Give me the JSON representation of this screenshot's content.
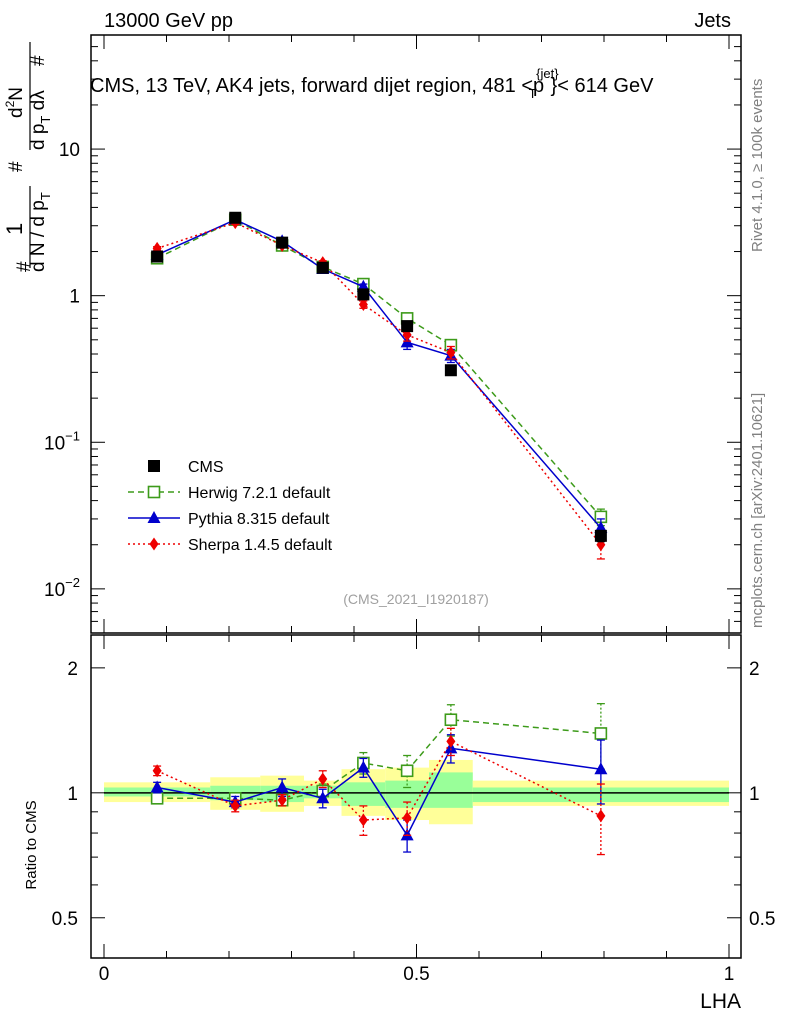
{
  "header": {
    "left": "13000 GeV pp",
    "right": "Jets"
  },
  "side_labels": {
    "rivet": "Rivet 4.1.0, ≥ 100k events",
    "mcplots": "mcplots.cern.ch [arXiv:2401.10621]"
  },
  "chart_data": {
    "type": "line",
    "title_prefix": "CMS, 13 TeV, AK4 jets, forward dijet region, 481 <p",
    "title_sup": "{jet}",
    "title_sub": "T",
    "title_suffix": "}< 614 GeV",
    "analysis_id": "(CMS_2021_I1920187)",
    "xlabel": "LHA",
    "ylabel_main": "# 1 / (d N / d p_T #) # d²N / (d p_T dλ)",
    "ylabel_ratio": "Ratio to CMS",
    "xlim": [
      0,
      1
    ],
    "ylim_main": [
      0.005,
      60
    ],
    "yscale_main": "log",
    "ylim_ratio": [
      0.4,
      2.4
    ],
    "yscale_ratio": "log",
    "x_ticks": [
      {
        "value": 0,
        "label": "0"
      },
      {
        "value": 0.5,
        "label": "0.5"
      },
      {
        "value": 1,
        "label": "1"
      }
    ],
    "y_ticks_main": [
      {
        "value": 0.01,
        "base": "10",
        "exp": "−2"
      },
      {
        "value": 0.1,
        "base": "10",
        "exp": "−1"
      },
      {
        "value": 1,
        "base": "1",
        "exp": ""
      },
      {
        "value": 10,
        "base": "10",
        "exp": ""
      }
    ],
    "y_ticks_ratio": [
      {
        "value": 0.5,
        "label": "0.5"
      },
      {
        "value": 1,
        "label": "1"
      },
      {
        "value": 2,
        "label": "2"
      }
    ],
    "bins": [
      [
        0.0,
        0.17
      ],
      [
        0.17,
        0.25
      ],
      [
        0.25,
        0.32
      ],
      [
        0.32,
        0.38
      ],
      [
        0.38,
        0.45
      ],
      [
        0.45,
        0.52
      ],
      [
        0.52,
        0.59
      ],
      [
        0.59,
        1.0
      ]
    ],
    "band_outer": [
      [
        0.95,
        1.06
      ],
      [
        0.91,
        1.09
      ],
      [
        0.9,
        1.1
      ],
      [
        0.93,
        1.07
      ],
      [
        0.88,
        1.14
      ],
      [
        0.86,
        1.15
      ],
      [
        0.84,
        1.2
      ],
      [
        0.93,
        1.07
      ]
    ],
    "band_inner": [
      [
        0.98,
        1.03
      ],
      [
        0.96,
        1.04
      ],
      [
        0.95,
        1.04
      ],
      [
        0.97,
        1.04
      ],
      [
        0.93,
        1.06
      ],
      [
        0.92,
        1.07
      ],
      [
        0.92,
        1.12
      ],
      [
        0.95,
        1.03
      ]
    ],
    "series": [
      {
        "name": "CMS",
        "key": "cms",
        "color": "#000000",
        "marker": "square-filled",
        "line": "none",
        "x": [
          0.085,
          0.21,
          0.285,
          0.35,
          0.415,
          0.485,
          0.555,
          0.795
        ],
        "values": [
          1.85,
          3.4,
          2.3,
          1.55,
          1.02,
          0.62,
          0.31,
          0.023
        ],
        "errors": [
          0.05,
          0.08,
          0.06,
          0.05,
          0.04,
          0.03,
          0.02,
          0.002
        ],
        "ratio": [
          1,
          1,
          1,
          1,
          1,
          1,
          1,
          1
        ],
        "ratio_errors": [
          0,
          0,
          0,
          0,
          0,
          0,
          0,
          0
        ]
      },
      {
        "name": "Herwig 7.2.1 default",
        "key": "herwig",
        "color": "#3d9b1a",
        "marker": "square-open",
        "line": "dashed",
        "x": [
          0.085,
          0.21,
          0.285,
          0.35,
          0.415,
          0.485,
          0.555,
          0.795
        ],
        "values": [
          1.8,
          3.3,
          2.2,
          1.57,
          1.2,
          0.7,
          0.46,
          0.031
        ],
        "errors": [
          0.05,
          0.08,
          0.06,
          0.05,
          0.05,
          0.04,
          0.03,
          0.004
        ],
        "ratio": [
          0.97,
          0.97,
          0.96,
          1.01,
          1.18,
          1.13,
          1.5,
          1.39
        ],
        "ratio_errors": [
          0.02,
          0.02,
          0.03,
          0.04,
          0.07,
          0.1,
          0.13,
          0.25
        ]
      },
      {
        "name": "Pythia 8.315 default",
        "key": "pythia",
        "color": "#0000cc",
        "marker": "triangle",
        "line": "solid",
        "x": [
          0.085,
          0.21,
          0.285,
          0.35,
          0.415,
          0.485,
          0.555,
          0.795
        ],
        "values": [
          1.9,
          3.3,
          2.35,
          1.52,
          1.15,
          0.48,
          0.39,
          0.026
        ],
        "errors": [
          0.05,
          0.08,
          0.07,
          0.05,
          0.05,
          0.05,
          0.04,
          0.004
        ],
        "ratio": [
          1.03,
          0.95,
          1.03,
          0.97,
          1.15,
          0.79,
          1.28,
          1.14
        ],
        "ratio_errors": [
          0.03,
          0.03,
          0.05,
          0.05,
          0.06,
          0.07,
          0.1,
          0.2
        ]
      },
      {
        "name": "Sherpa 1.4.5 default",
        "key": "sherpa",
        "color": "#ee0000",
        "marker": "diamond",
        "line": "dotted",
        "x": [
          0.085,
          0.21,
          0.285,
          0.35,
          0.415,
          0.485,
          0.555,
          0.795
        ],
        "values": [
          2.1,
          3.15,
          2.2,
          1.68,
          0.87,
          0.54,
          0.41,
          0.02
        ],
        "errors": [
          0.06,
          0.08,
          0.06,
          0.05,
          0.05,
          0.05,
          0.04,
          0.004
        ],
        "ratio": [
          1.13,
          0.93,
          0.96,
          1.08,
          0.86,
          0.87,
          1.33,
          0.88
        ],
        "ratio_errors": [
          0.03,
          0.03,
          0.03,
          0.05,
          0.07,
          0.08,
          0.1,
          0.17
        ]
      }
    ]
  }
}
